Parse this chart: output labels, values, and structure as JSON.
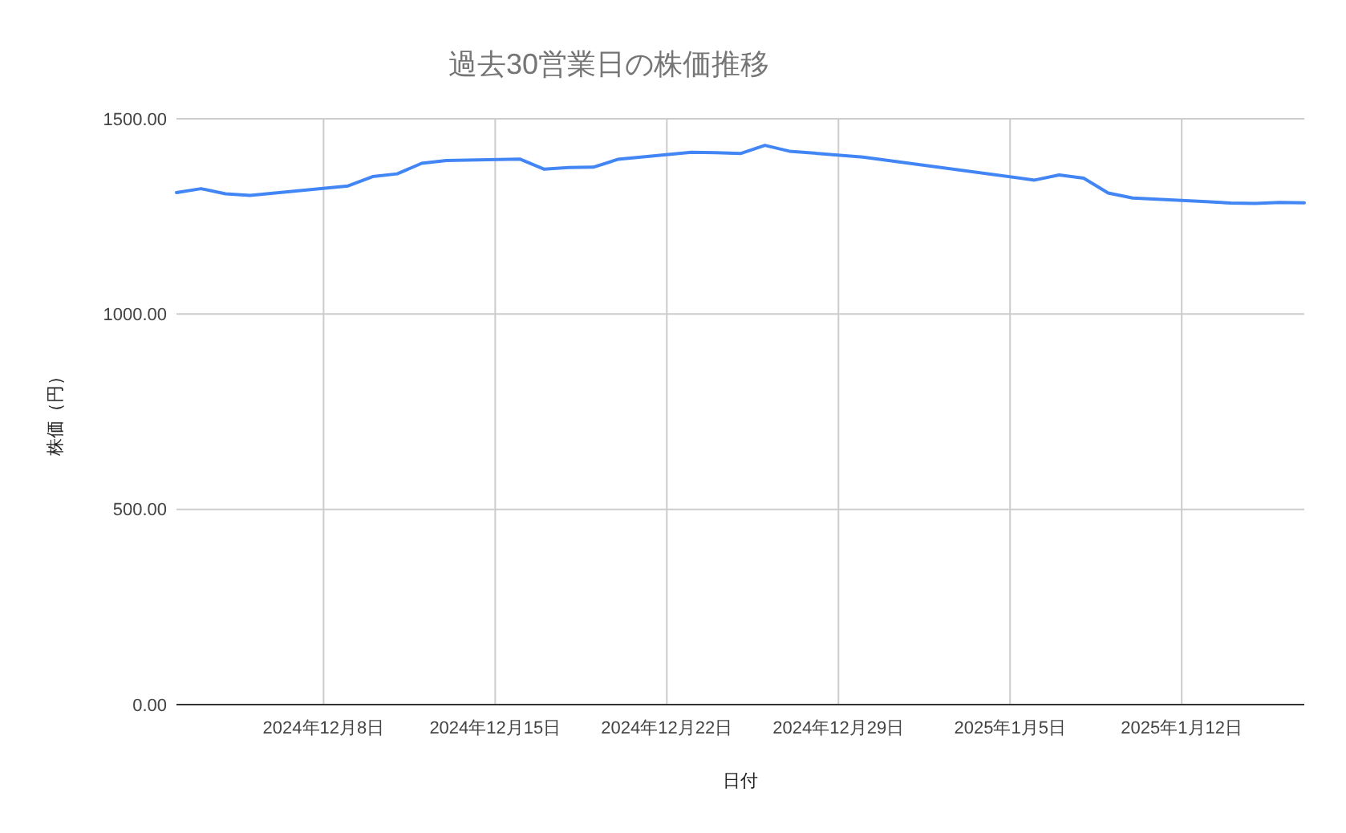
{
  "chart_data": {
    "type": "line",
    "title": "過去30営業日の株価推移",
    "xlabel": "日付",
    "ylabel": "株価（円）",
    "x": [
      "2024-12-02",
      "2024-12-03",
      "2024-12-04",
      "2024-12-05",
      "2024-12-09",
      "2024-12-10",
      "2024-12-11",
      "2024-12-12",
      "2024-12-13",
      "2024-12-16",
      "2024-12-17",
      "2024-12-18",
      "2024-12-19",
      "2024-12-20",
      "2024-12-23",
      "2024-12-24",
      "2024-12-25",
      "2024-12-26",
      "2024-12-27",
      "2024-12-30",
      "2025-01-06",
      "2025-01-07",
      "2025-01-08",
      "2025-01-09",
      "2025-01-10",
      "2025-01-13",
      "2025-01-14",
      "2025-01-15",
      "2025-01-16",
      "2025-01-17"
    ],
    "series": [
      {
        "color": "#4285f4",
        "values": [
          1311,
          1321,
          1308,
          1304,
          1328,
          1352,
          1359,
          1386,
          1393,
          1397,
          1371,
          1375,
          1376,
          1396,
          1414,
          1413,
          1411,
          1432,
          1417,
          1402,
          1343,
          1356,
          1348,
          1310,
          1297,
          1288,
          1284,
          1283,
          1286,
          1285
        ]
      }
    ],
    "xlim": [
      "2024-12-02",
      "2025-01-17"
    ],
    "xticks": [
      {
        "value": "2024-12-08",
        "label": "2024年12月8日"
      },
      {
        "value": "2024-12-15",
        "label": "2024年12月15日"
      },
      {
        "value": "2024-12-22",
        "label": "2024年12月22日"
      },
      {
        "value": "2024-12-29",
        "label": "2024年12月29日"
      },
      {
        "value": "2025-01-05",
        "label": "2025年1月5日"
      },
      {
        "value": "2025-01-12",
        "label": "2025年1月12日"
      }
    ],
    "ylim": [
      0,
      1500
    ],
    "yticks": [
      {
        "value": 0,
        "label": "0.00"
      },
      {
        "value": 500,
        "label": "500.00"
      },
      {
        "value": 1000,
        "label": "1000.00"
      },
      {
        "value": 1500,
        "label": "1500.00"
      }
    ],
    "grid": true,
    "marker": "none",
    "line_style": "solid"
  }
}
